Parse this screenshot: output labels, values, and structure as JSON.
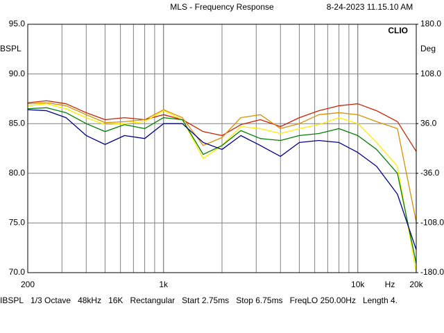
{
  "chart_data": {
    "type": "line",
    "title": "MLS - Frequency Response",
    "timestamp": "8-24-2023 11.15.10 AM",
    "brand": "CLIO",
    "y_label": "BSPL",
    "y2_label": "Deg",
    "x_unit": "Hz",
    "log_x": true,
    "grid": true,
    "xlim": [
      200,
      20000
    ],
    "xticks": [
      200,
      {
        "value": 1000,
        "label": "1k"
      },
      {
        "value": 10000,
        "label": "10k"
      },
      {
        "value": 20000,
        "label": "20k"
      }
    ],
    "ylim": [
      70,
      95
    ],
    "yticks": [
      {
        "value": 95,
        "label": "95.0"
      },
      {
        "value": 90,
        "label": "90.0"
      },
      {
        "value": 85,
        "label": "85.0"
      },
      {
        "value": 80,
        "label": "80.0"
      },
      {
        "value": 75,
        "label": "75.0"
      },
      {
        "value": 70,
        "label": "70.0"
      }
    ],
    "y2lim": [
      -180,
      180
    ],
    "y2ticks": [
      {
        "value": 180,
        "label": "180.0"
      },
      {
        "value": 108,
        "label": "108.0"
      },
      {
        "value": 36,
        "label": "36.0"
      },
      {
        "value": -36,
        "label": "-36.0"
      },
      {
        "value": -108,
        "label": "-108.0"
      },
      {
        "value": -180,
        "label": "-180.0"
      }
    ],
    "x": [
      200,
      250,
      315,
      400,
      500,
      630,
      800,
      1000,
      1250,
      1600,
      2000,
      2500,
      3150,
      4000,
      5000,
      6300,
      8000,
      10000,
      12500,
      16000,
      20000
    ],
    "series": [
      {
        "color": "#cc2200",
        "values": [
          87.1,
          87.3,
          87.0,
          86.1,
          85.4,
          85.6,
          85.4,
          85.9,
          85.4,
          84.2,
          83.8,
          84.9,
          85.4,
          84.7,
          85.6,
          86.3,
          86.8,
          87.0,
          86.3,
          85.2,
          82.2
        ]
      },
      {
        "color": "#d99000",
        "values": [
          87.0,
          87.1,
          86.8,
          85.9,
          85.1,
          85.2,
          85.4,
          86.4,
          85.6,
          82.8,
          83.6,
          85.6,
          85.9,
          84.5,
          85.0,
          85.9,
          86.1,
          85.9,
          85.2,
          84.5,
          75.1
        ]
      },
      {
        "color": "#ffee00",
        "values": [
          86.8,
          87.0,
          86.5,
          85.6,
          84.9,
          85.0,
          85.2,
          86.3,
          85.4,
          81.5,
          82.8,
          84.7,
          84.5,
          84.0,
          84.5,
          84.9,
          85.6,
          85.0,
          83.1,
          80.7,
          70.0
        ]
      },
      {
        "color": "#008000",
        "values": [
          86.5,
          86.6,
          86.1,
          85.0,
          84.2,
          84.9,
          84.5,
          85.6,
          85.4,
          81.9,
          82.8,
          84.3,
          83.5,
          83.3,
          83.8,
          84.0,
          84.5,
          83.8,
          82.4,
          80.0,
          70.9
        ]
      },
      {
        "color": "#000090",
        "values": [
          86.4,
          86.3,
          85.6,
          83.8,
          82.9,
          83.8,
          83.5,
          85.0,
          85.0,
          83.1,
          82.4,
          83.8,
          82.8,
          81.7,
          83.1,
          83.3,
          83.1,
          82.1,
          80.7,
          77.9,
          72.3
        ]
      }
    ],
    "footer": [
      "IBSPL",
      "1/3 Octave",
      "48kHz",
      "16K",
      "Rectangular",
      "Start 2.75ms",
      "Stop 6.75ms",
      "FreqLO 250.00Hz",
      "Length 4."
    ]
  }
}
